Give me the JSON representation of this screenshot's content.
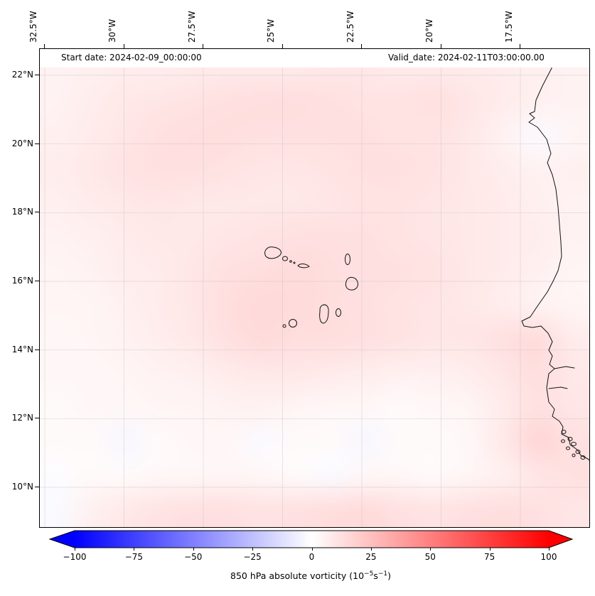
{
  "header": {
    "start_date": "Start date: 2024-02-09_00:00:00",
    "valid_date": "Valid_date: 2024-02-11T03:00:00.00"
  },
  "axes": {
    "x_ticks": [
      "32.5°W",
      "30°W",
      "27.5°W",
      "25°W",
      "22.5°W",
      "20°W",
      "17.5°W"
    ],
    "y_ticks": [
      "22°N",
      "20°N",
      "18°N",
      "16°N",
      "14°N",
      "12°N",
      "10°N"
    ]
  },
  "colorbar": {
    "label_prefix": "850 hPa absolute vorticity (10",
    "label_sup1": "−5",
    "label_mid": "s",
    "label_sup2": "−1",
    "label_suffix": ")",
    "tick_labels": [
      "−100",
      "−75",
      "−50",
      "−25",
      "0",
      "25",
      "50",
      "75",
      "100"
    ],
    "tick_values": [
      -100,
      -75,
      -50,
      -25,
      0,
      25,
      50,
      75,
      100
    ],
    "min": -100,
    "max": 100,
    "color_neg": "#0000ff",
    "color_zero": "#ffffff",
    "color_pos": "#ff0000",
    "extend": "both"
  },
  "chart_data": {
    "type": "heatmap",
    "variable": "850 hPa absolute vorticity",
    "units": "10^-5 s^-1",
    "start_date": "2024-02-09_00:00:00",
    "valid_date": "2024-02-11T03:00:00.00",
    "lon_ticks_deg_w": [
      32.5,
      30,
      27.5,
      25,
      22.5,
      20,
      17.5
    ],
    "lat_ticks_deg_n": [
      22,
      20,
      18,
      16,
      14,
      12,
      10
    ],
    "lon_range_deg_w": [
      32.66,
      15.33
    ],
    "lat_range_deg_n": [
      8.85,
      22.75
    ],
    "colormap": "blue-white-red",
    "color_scale": {
      "min": -100,
      "max": 100,
      "ticks": [
        -100,
        -75,
        -50,
        -25,
        0,
        25,
        50,
        75,
        100
      ]
    },
    "grid_cols": 16,
    "grid_rows": 14,
    "grid_note": "rows ordered north (22.6N) to south (9.4N), cols west (32.7W) to east (15.4W), values in 1e-5 s^-1 estimated from shading",
    "values": [
      [
        5,
        6,
        7,
        7,
        8,
        8,
        8,
        8,
        9,
        9,
        8,
        8,
        8,
        7,
        6,
        5
      ],
      [
        5,
        7,
        9,
        10,
        11,
        12,
        13,
        13,
        12,
        11,
        11,
        12,
        10,
        8,
        6,
        5
      ],
      [
        6,
        8,
        10,
        12,
        13,
        13,
        12,
        12,
        12,
        12,
        11,
        11,
        9,
        5,
        -2,
        4
      ],
      [
        7,
        9,
        11,
        12,
        12,
        11,
        10,
        10,
        11,
        12,
        12,
        11,
        9,
        7,
        5,
        6
      ],
      [
        6,
        8,
        9,
        10,
        9,
        9,
        9,
        9,
        10,
        11,
        11,
        10,
        9,
        8,
        6,
        5
      ],
      [
        5,
        6,
        8,
        9,
        9,
        10,
        11,
        12,
        12,
        12,
        11,
        10,
        9,
        8,
        7,
        5
      ],
      [
        4,
        5,
        7,
        8,
        10,
        12,
        13,
        14,
        13,
        12,
        12,
        11,
        9,
        8,
        6,
        4
      ],
      [
        4,
        4,
        6,
        8,
        10,
        13,
        15,
        14,
        13,
        12,
        11,
        10,
        9,
        7,
        5,
        4
      ],
      [
        3,
        4,
        5,
        7,
        9,
        12,
        14,
        13,
        13,
        12,
        11,
        10,
        10,
        12,
        14,
        8
      ],
      [
        3,
        3,
        4,
        5,
        6,
        8,
        9,
        9,
        8,
        7,
        6,
        6,
        7,
        10,
        13,
        9
      ],
      [
        2,
        3,
        3,
        4,
        4,
        5,
        5,
        4,
        3,
        3,
        2,
        3,
        4,
        8,
        12,
        10
      ],
      [
        2,
        2,
        -3,
        2,
        3,
        3,
        -2,
        2,
        2,
        -3,
        2,
        2,
        3,
        9,
        16,
        12
      ],
      [
        -1,
        2,
        2,
        3,
        3,
        4,
        3,
        2,
        -2,
        3,
        3,
        2,
        4,
        6,
        10,
        12
      ],
      [
        -2,
        6,
        9,
        11,
        12,
        12,
        11,
        12,
        13,
        14,
        12,
        11,
        12,
        13,
        12,
        10
      ]
    ]
  }
}
